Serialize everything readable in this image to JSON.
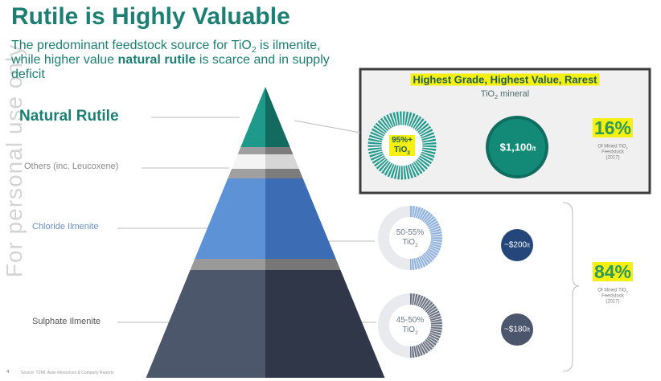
{
  "title": "Rutile is Highly Valuable",
  "subtitle": {
    "parts": [
      "The predominant feedstock source for TiO",
      "2",
      " is ilmenite, while higher value ",
      "natural rutile",
      " is scarce and in supply deficit"
    ]
  },
  "watermark": "For personal use only",
  "pyramid": {
    "labels": [
      "Natural Rutile",
      "Others (inc. Leucoxene)",
      "Chloride Ilmenite",
      "Sulphate Ilmenite"
    ]
  },
  "highlight_box": {
    "heading": "Highest Grade, Highest Value, Rarest",
    "subheading": [
      "TiO",
      "2",
      " mineral"
    ]
  },
  "rows": [
    {
      "grade": [
        "95%+",
        "TiO",
        "2"
      ],
      "price": [
        "$1,100",
        "/t"
      ]
    },
    {
      "grade": [
        "50-55%",
        "TiO",
        "2"
      ],
      "price": [
        "~$200",
        "/t"
      ]
    },
    {
      "grade": [
        "45-50%",
        "TiO",
        "2"
      ],
      "price": [
        "~$180",
        "/t"
      ]
    }
  ],
  "shares": [
    {
      "value": "16%",
      "note": [
        "Of Mined TiO",
        "2",
        " Feedstock",
        "(2017)"
      ]
    },
    {
      "value": "84%",
      "note": [
        "Of Mined TiO",
        "2",
        " Feedstock",
        "(2017)"
      ]
    }
  ],
  "footer": {
    "page": "4",
    "source": "Source: TZMI, Auss Resources & Company Reports"
  }
}
